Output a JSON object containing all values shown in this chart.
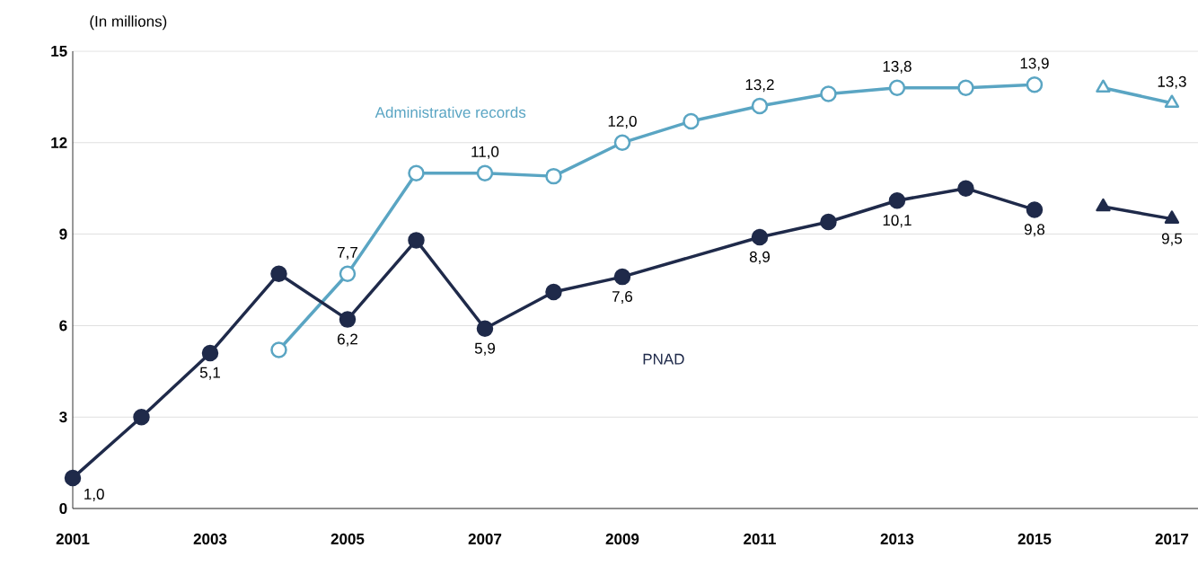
{
  "chart_data": {
    "type": "line",
    "ylabel": "(In millions)",
    "categories": [
      "2001",
      null,
      "2003",
      null,
      "2005",
      null,
      "2007",
      null,
      "2009",
      null,
      "2011",
      null,
      "2013",
      null,
      "2015",
      null,
      "2017"
    ],
    "ylim": [
      0,
      15
    ],
    "yticks": [
      0,
      3,
      6,
      9,
      12,
      15
    ],
    "grid": "y",
    "line_style": "solid",
    "series": [
      {
        "name": "Administrative records",
        "color": "#5aa5c3",
        "marker": "circle",
        "values": [
          null,
          null,
          null,
          5.2,
          7.7,
          11.0,
          11.0,
          10.9,
          12.0,
          12.7,
          13.2,
          13.6,
          13.8,
          13.8,
          13.9,
          null,
          null
        ],
        "value_labels": [
          null,
          null,
          null,
          null,
          "7,7",
          null,
          "11,0",
          null,
          "12,0",
          null,
          "13,2",
          null,
          "13,8",
          null,
          "13,9",
          null,
          null
        ]
      },
      {
        "color": "#5aa5c3",
        "marker": "triangle",
        "values": [
          null,
          null,
          null,
          null,
          null,
          null,
          null,
          null,
          null,
          null,
          null,
          null,
          null,
          null,
          null,
          13.8,
          13.3
        ],
        "value_labels": [
          null,
          null,
          null,
          null,
          null,
          null,
          null,
          null,
          null,
          null,
          null,
          null,
          null,
          null,
          null,
          null,
          "13,3"
        ]
      },
      {
        "name": "PNAD",
        "color": "#1f2a4a",
        "marker": "circle",
        "values": [
          1.0,
          3.0,
          5.1,
          7.7,
          6.2,
          8.8,
          5.9,
          7.1,
          7.6,
          null,
          8.9,
          9.4,
          10.1,
          10.5,
          9.8,
          null,
          null
        ],
        "value_labels": [
          "1,0",
          null,
          "5,1",
          null,
          "6,2",
          null,
          "5,9",
          null,
          "7,6",
          null,
          "8,9",
          null,
          "10,1",
          null,
          "9,8",
          null,
          null
        ]
      },
      {
        "color": "#1f2a4a",
        "marker": "triangle",
        "values": [
          null,
          null,
          null,
          null,
          null,
          null,
          null,
          null,
          null,
          null,
          null,
          null,
          null,
          null,
          null,
          9.9,
          9.5
        ],
        "value_labels": [
          null,
          null,
          null,
          null,
          null,
          null,
          null,
          null,
          null,
          null,
          null,
          null,
          null,
          null,
          null,
          null,
          "9,5"
        ]
      }
    ]
  }
}
